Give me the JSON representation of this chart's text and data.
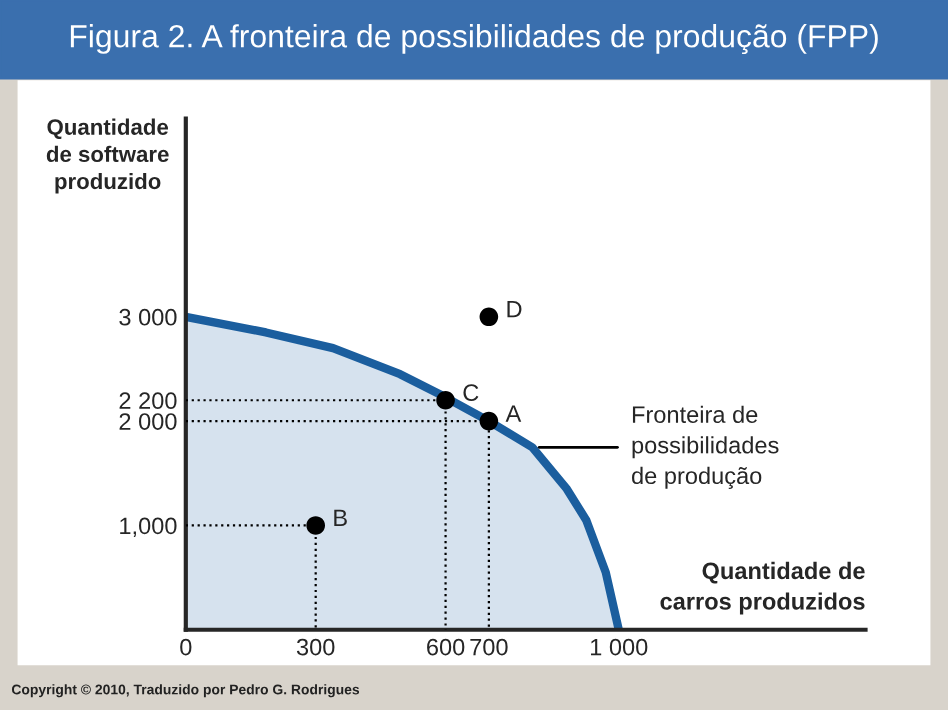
{
  "chart_data": {
    "type": "area",
    "title": "Figura 2. A fronteira de possibilidades de produção (FPP)",
    "ylabel": "Quantidade\nde software\nproduzido",
    "xlabel": "Quantidade de\ncarros produzidos",
    "xlim": [
      0,
      1570
    ],
    "ylim": [
      0,
      4900
    ],
    "xticks": [
      0,
      300,
      600,
      700,
      {
        "value": 1000,
        "label": "1 000"
      }
    ],
    "yticks": [
      {
        "value": 1000,
        "label": "1,000"
      },
      {
        "value": 2000,
        "label": "2 000"
      },
      {
        "value": 2200,
        "label": "2 200"
      },
      {
        "value": 3000,
        "label": "3 000"
      }
    ],
    "grid": false,
    "series": [
      {
        "color": "#1b5e9e",
        "x": [
          0,
          185,
          340,
          495,
          590,
          700,
          800,
          880,
          925,
          970,
          1000
        ],
        "values": [
          3000,
          2850,
          2700,
          2450,
          2250,
          2000,
          1750,
          1350,
          1050,
          550,
          0
        ]
      },
      {
        "type": "line",
        "line_style": "dotted",
        "color": "#000000",
        "x": [
          0,
          600,
          600
        ],
        "values": [
          2200,
          2200,
          0
        ]
      },
      {
        "type": "line",
        "line_style": "dotted",
        "color": "#000000",
        "x": [
          0,
          700,
          700
        ],
        "values": [
          2000,
          2000,
          0
        ]
      },
      {
        "type": "line",
        "line_style": "dotted",
        "color": "#000000",
        "x": [
          0,
          300,
          300
        ],
        "values": [
          1000,
          1000,
          0
        ]
      },
      {
        "type": "scatter",
        "marker": "circle",
        "color": "#000000",
        "x": [
          700,
          300,
          600,
          700
        ],
        "values": [
          2000,
          1000,
          2200,
          3000
        ]
      }
    ],
    "annotations": [
      {
        "text": "A",
        "x": 700,
        "y": 2000
      },
      {
        "text": "B",
        "x": 300,
        "y": 1000
      },
      {
        "text": "C",
        "x": 600,
        "y": 2200
      },
      {
        "text": "D",
        "x": 700,
        "y": 3000
      },
      "Fronteira de\npossibilidades\nde produção",
      "Copyright © 2010, Traduzido por Pedro G. Rodrigues"
    ]
  }
}
